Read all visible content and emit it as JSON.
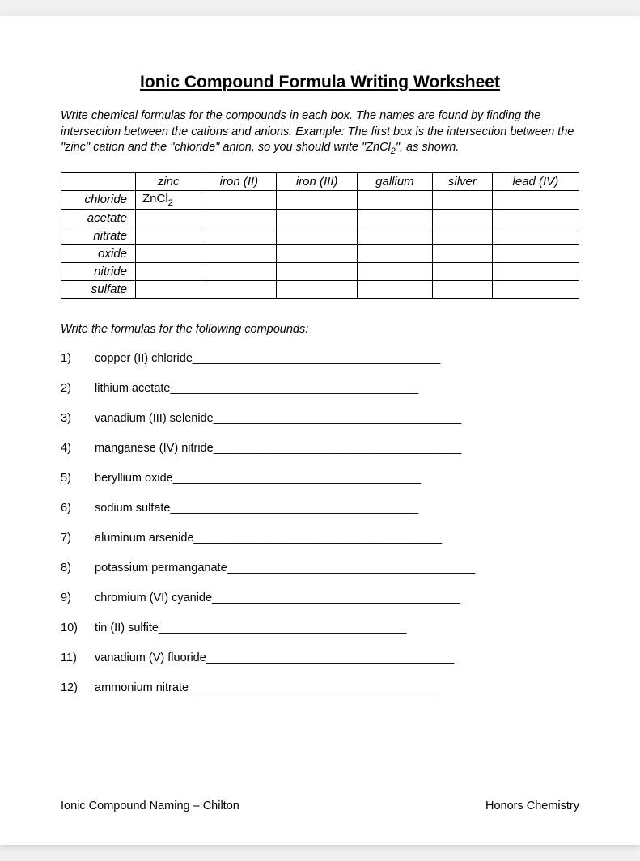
{
  "title": "Ionic Compound Formula Writing Worksheet",
  "instructions_html": "Write chemical formulas for the compounds in each box.  The names are found by finding the intersection between the cations and anions.  Example:  The first box is the intersection between the \"zinc\" cation and the \"chloride\" anion, so you should write \"ZnCl<sub>2</sub>\", as shown.",
  "table": {
    "columns": [
      "zinc",
      "iron (II)",
      "iron (III)",
      "gallium",
      "silver",
      "lead (IV)"
    ],
    "rows": [
      "chloride",
      "acetate",
      "nitrate",
      "oxide",
      "nitride",
      "sulfate"
    ],
    "cells": {
      "chloride,zinc": "ZnCl<sub>2</sub>"
    }
  },
  "section2_intro": "Write the formulas for the following compounds:",
  "questions": [
    {
      "n": "1)",
      "text": "copper (II) chloride ",
      "blank": "______________________________________"
    },
    {
      "n": "2)",
      "text": "lithium acetate ",
      "blank": "______________________________________"
    },
    {
      "n": "3)",
      "text": "vanadium (III) selenide ",
      "blank": "______________________________________"
    },
    {
      "n": "4)",
      "text": "manganese (IV) nitride ",
      "blank": "______________________________________"
    },
    {
      "n": "5)",
      "text": "beryllium oxide ",
      "blank": "______________________________________"
    },
    {
      "n": "6)",
      "text": "sodium sulfate ",
      "blank": "______________________________________"
    },
    {
      "n": "7)",
      "text": "aluminum arsenide ",
      "blank": "______________________________________"
    },
    {
      "n": "8)",
      "text": "potassium permanganate ",
      "blank": "______________________________________"
    },
    {
      "n": "9)",
      "text": "chromium (VI) cyanide ",
      "blank": "______________________________________"
    },
    {
      "n": "10)",
      "text": "tin (II) sulfite ",
      "blank": "______________________________________"
    },
    {
      "n": "11)",
      "text": "vanadium (V) fluoride ",
      "blank": "______________________________________"
    },
    {
      "n": "12)",
      "text": "ammonium nitrate ",
      "blank": "______________________________________"
    }
  ],
  "footer": {
    "left": "Ionic Compound Naming – Chilton",
    "right": "Honors Chemistry"
  }
}
